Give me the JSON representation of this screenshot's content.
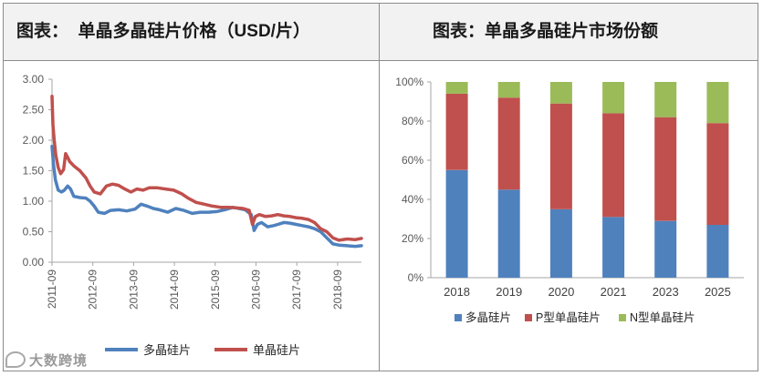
{
  "left_panel": {
    "title": "图表：  单晶多晶硅片价格（USD/片）"
  },
  "right_panel": {
    "title": "图表：单晶多晶硅片市场份额"
  },
  "watermark": "大数跨境",
  "chart_data": [
    {
      "type": "line",
      "title": "单晶多晶硅片价格（USD/片）",
      "ylim": [
        0,
        3
      ],
      "yticks": [
        "0.00",
        "0.50",
        "1.00",
        "1.50",
        "2.00",
        "2.50",
        "3.00"
      ],
      "xticks": [
        "2011-09",
        "2012-09",
        "2013-09",
        "2014-09",
        "2015-09",
        "2016-09",
        "2017-09",
        "2018-09"
      ],
      "x_range": [
        2011.667,
        2019.25
      ],
      "legend_position": "bottom",
      "series": [
        {
          "name": "多晶硅片",
          "color": "#4f81bd",
          "x": [
            2011.667,
            2011.7,
            2011.75,
            2011.82,
            2011.9,
            2011.97,
            2012.05,
            2012.12,
            2012.2,
            2012.35,
            2012.5,
            2012.6,
            2012.7,
            2012.8,
            2012.95,
            2013.1,
            2013.3,
            2013.5,
            2013.7,
            2013.85,
            2014.0,
            2014.15,
            2014.3,
            2014.5,
            2014.7,
            2014.9,
            2015.1,
            2015.3,
            2015.5,
            2015.7,
            2015.9,
            2016.1,
            2016.25,
            2016.4,
            2016.55,
            2016.62,
            2016.7,
            2016.8,
            2016.95,
            2017.1,
            2017.2,
            2017.35,
            2017.5,
            2017.65,
            2017.8,
            2017.95,
            2018.1,
            2018.25,
            2018.4,
            2018.55,
            2018.7,
            2018.9,
            2019.1,
            2019.25
          ],
          "values": [
            1.9,
            1.62,
            1.35,
            1.18,
            1.15,
            1.18,
            1.25,
            1.2,
            1.08,
            1.06,
            1.05,
            1.0,
            0.92,
            0.82,
            0.8,
            0.85,
            0.86,
            0.84,
            0.87,
            0.95,
            0.92,
            0.88,
            0.86,
            0.82,
            0.88,
            0.85,
            0.8,
            0.82,
            0.82,
            0.83,
            0.86,
            0.9,
            0.88,
            0.86,
            0.78,
            0.52,
            0.62,
            0.65,
            0.58,
            0.6,
            0.62,
            0.65,
            0.64,
            0.62,
            0.6,
            0.58,
            0.55,
            0.5,
            0.4,
            0.3,
            0.28,
            0.27,
            0.26,
            0.27
          ]
        },
        {
          "name": "单晶硅片",
          "color": "#c0504d",
          "x": [
            2011.667,
            2011.69,
            2011.72,
            2011.76,
            2011.82,
            2011.88,
            2011.95,
            2012.0,
            2012.05,
            2012.1,
            2012.2,
            2012.35,
            2012.5,
            2012.6,
            2012.7,
            2012.85,
            2013.0,
            2013.15,
            2013.3,
            2013.45,
            2013.6,
            2013.75,
            2013.9,
            2014.05,
            2014.25,
            2014.45,
            2014.65,
            2014.85,
            2015.0,
            2015.2,
            2015.4,
            2015.6,
            2015.8,
            2016.0,
            2016.2,
            2016.35,
            2016.5,
            2016.58,
            2016.65,
            2016.75,
            2016.9,
            2017.05,
            2017.2,
            2017.35,
            2017.5,
            2017.65,
            2017.8,
            2017.95,
            2018.1,
            2018.25,
            2018.4,
            2018.55,
            2018.7,
            2018.9,
            2019.1,
            2019.25
          ],
          "values": [
            2.72,
            2.25,
            2.0,
            1.75,
            1.55,
            1.45,
            1.52,
            1.78,
            1.72,
            1.65,
            1.58,
            1.5,
            1.38,
            1.25,
            1.15,
            1.12,
            1.25,
            1.28,
            1.26,
            1.2,
            1.15,
            1.2,
            1.18,
            1.22,
            1.22,
            1.2,
            1.18,
            1.12,
            1.05,
            0.98,
            0.95,
            0.92,
            0.9,
            0.9,
            0.89,
            0.88,
            0.85,
            0.62,
            0.75,
            0.78,
            0.75,
            0.76,
            0.78,
            0.76,
            0.75,
            0.73,
            0.72,
            0.7,
            0.65,
            0.55,
            0.5,
            0.4,
            0.36,
            0.38,
            0.37,
            0.39
          ]
        }
      ]
    },
    {
      "type": "bar",
      "stacked": true,
      "title": "单晶多晶硅片市场份额",
      "ylim": [
        0,
        100
      ],
      "yticks": [
        "0%",
        "20%",
        "40%",
        "60%",
        "80%",
        "100%"
      ],
      "categories": [
        "2018",
        "2019",
        "2020",
        "2021",
        "2023",
        "2025"
      ],
      "legend_position": "bottom",
      "series": [
        {
          "name": "多晶硅片",
          "color": "#4f81bd",
          "values": [
            55,
            45,
            35,
            31,
            29,
            27
          ]
        },
        {
          "name": "P型单晶硅片",
          "color": "#c0504d",
          "values": [
            39,
            47,
            54,
            53,
            53,
            52
          ]
        },
        {
          "name": "N型单晶硅片",
          "color": "#9bbb59",
          "values": [
            6,
            8,
            11,
            16,
            18,
            21
          ]
        }
      ]
    }
  ]
}
